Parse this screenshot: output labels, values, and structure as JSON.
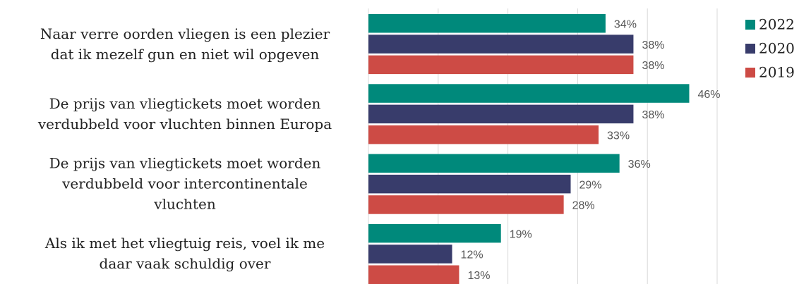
{
  "chart_data": {
    "type": "barh",
    "categories": [
      "Naar verre oorden vliegen is een plezier\ndat ik mezelf gun en niet wil opgeven",
      "De prijs van vliegtickets moet worden\nverdubbeld voor vluchten binnen Europa",
      "De prijs van vliegtickets moet worden\nverdubbeld voor intercontinentale\nvluchten",
      "Als ik met het vliegtuig reis, voel ik me\ndaar vaak schuldig over"
    ],
    "series": [
      {
        "name": "2022",
        "color": "#00897b",
        "values": [
          34,
          46,
          36,
          19
        ],
        "value_labels": [
          "34%",
          "46%",
          "36%",
          "19%"
        ]
      },
      {
        "name": "2020",
        "color": "#383c6b",
        "values": [
          38,
          38,
          29,
          12
        ],
        "value_labels": [
          "38%",
          "38%",
          "29%",
          "12%"
        ]
      },
      {
        "name": "2019",
        "color": "#cd4b45",
        "values": [
          38,
          33,
          28,
          13
        ],
        "value_labels": [
          "38%",
          "33%",
          "28%",
          "13%"
        ]
      }
    ],
    "xlim": [
      0,
      50
    ],
    "xticks": [
      0,
      10,
      20,
      30,
      40,
      50
    ],
    "grid": true,
    "legend": "right"
  }
}
